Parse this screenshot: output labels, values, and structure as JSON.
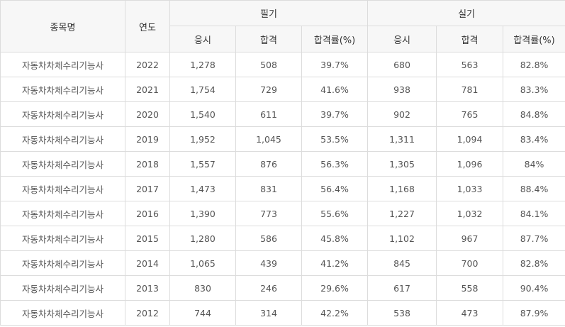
{
  "table": {
    "headers": {
      "name": "종목명",
      "year": "연도",
      "written": "필기",
      "practical": "실기",
      "sub": [
        "응시",
        "합격",
        "합격률(%)",
        "응시",
        "합격",
        "합격률(%)"
      ]
    },
    "rows": [
      [
        "자동차차체수리기능사",
        "2022",
        "1,278",
        "508",
        "39.7%",
        "680",
        "563",
        "82.8%"
      ],
      [
        "자동차차체수리기능사",
        "2021",
        "1,754",
        "729",
        "41.6%",
        "938",
        "781",
        "83.3%"
      ],
      [
        "자동차차체수리기능사",
        "2020",
        "1,540",
        "611",
        "39.7%",
        "902",
        "765",
        "84.8%"
      ],
      [
        "자동차차체수리기능사",
        "2019",
        "1,952",
        "1,045",
        "53.5%",
        "1,311",
        "1,094",
        "83.4%"
      ],
      [
        "자동차차체수리기능사",
        "2018",
        "1,557",
        "876",
        "56.3%",
        "1,305",
        "1,096",
        "84%"
      ],
      [
        "자동차차체수리기능사",
        "2017",
        "1,473",
        "831",
        "56.4%",
        "1,168",
        "1,033",
        "88.4%"
      ],
      [
        "자동차차체수리기능사",
        "2016",
        "1,390",
        "773",
        "55.6%",
        "1,227",
        "1,032",
        "84.1%"
      ],
      [
        "자동차차체수리기능사",
        "2015",
        "1,280",
        "586",
        "45.8%",
        "1,102",
        "967",
        "87.7%"
      ],
      [
        "자동차차체수리기능사",
        "2014",
        "1,065",
        "439",
        "41.2%",
        "845",
        "700",
        "82.8%"
      ],
      [
        "자동차차체수리기능사",
        "2013",
        "830",
        "246",
        "29.6%",
        "617",
        "558",
        "90.4%"
      ],
      [
        "자동차차체수리기능사",
        "2012",
        "744",
        "314",
        "42.2%",
        "538",
        "473",
        "87.9%"
      ]
    ]
  }
}
